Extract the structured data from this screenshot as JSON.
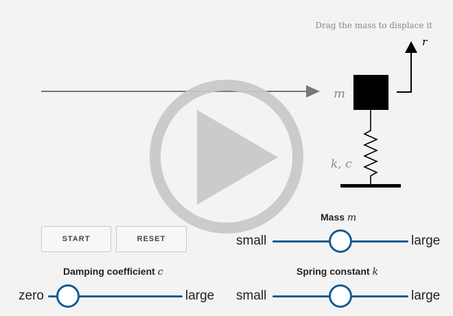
{
  "hint": "Drag the mass to displace it",
  "diagram": {
    "r_label": "r",
    "mass_label": "m",
    "spring_label": "k, c"
  },
  "buttons": {
    "start": "START",
    "reset": "RESET"
  },
  "sliders": {
    "mass": {
      "title": "Mass",
      "symbol": "m",
      "min_label": "small",
      "max_label": "large",
      "value": 0.5
    },
    "damping": {
      "title": "Damping coefficient",
      "symbol": "c",
      "min_label": "zero",
      "max_label": "large",
      "value": 0.15
    },
    "spring": {
      "title": "Spring constant",
      "symbol": "k",
      "min_label": "small",
      "max_label": "large",
      "value": 0.5
    }
  },
  "colors": {
    "accent": "#155a92",
    "play_overlay": "#c8c8c8"
  },
  "overlay_icon": "play-icon"
}
